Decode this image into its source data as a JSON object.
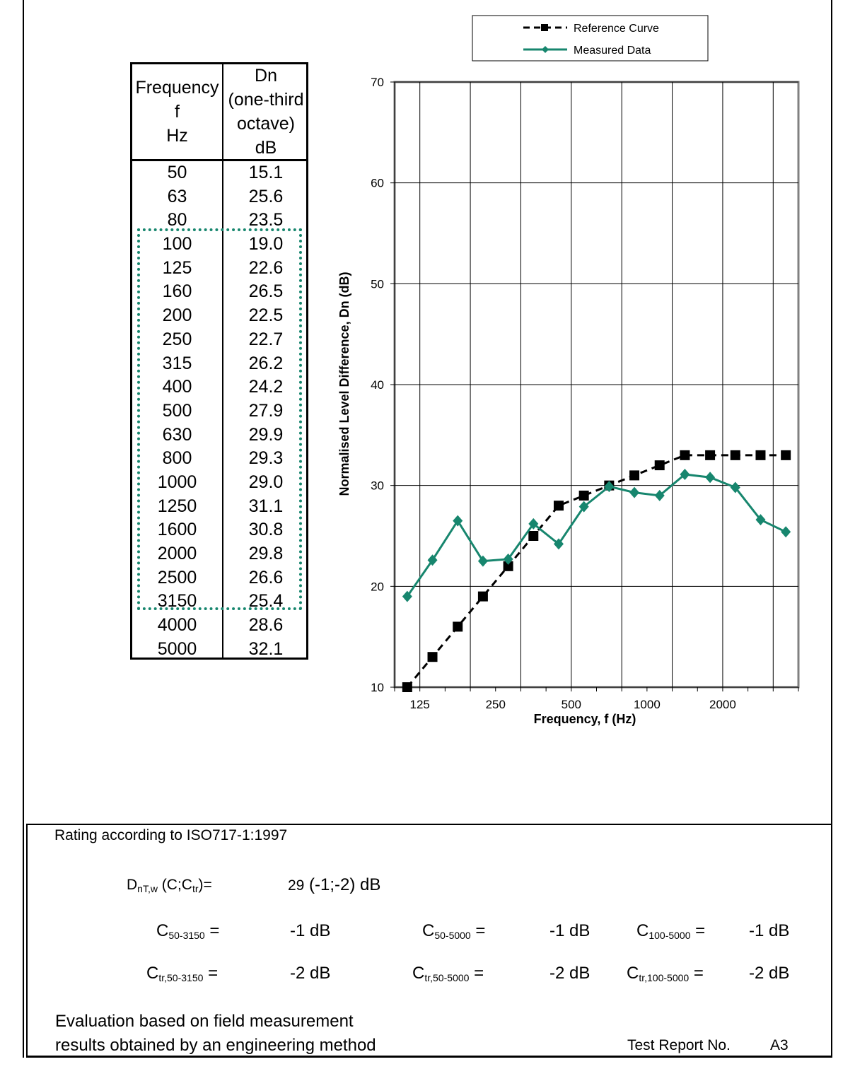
{
  "table": {
    "header_freq": [
      "Frequency",
      "f",
      "Hz"
    ],
    "header_dn": [
      "Dn",
      "(one-third",
      "octave)",
      "dB"
    ],
    "rows": [
      [
        "50",
        "15.1"
      ],
      [
        "63",
        "25.6"
      ],
      [
        "80",
        "23.5"
      ],
      [
        "100",
        "19.0"
      ],
      [
        "125",
        "22.6"
      ],
      [
        "160",
        "26.5"
      ],
      [
        "200",
        "22.5"
      ],
      [
        "250",
        "22.7"
      ],
      [
        "315",
        "26.2"
      ],
      [
        "400",
        "24.2"
      ],
      [
        "500",
        "27.9"
      ],
      [
        "630",
        "29.9"
      ],
      [
        "800",
        "29.3"
      ],
      [
        "1000",
        "29.0"
      ],
      [
        "1250",
        "31.1"
      ],
      [
        "1600",
        "30.8"
      ],
      [
        "2000",
        "29.8"
      ],
      [
        "2500",
        "26.6"
      ],
      [
        "3150",
        "25.4"
      ],
      [
        "4000",
        "28.6"
      ],
      [
        "5000",
        "32.1"
      ]
    ]
  },
  "chart_data": {
    "type": "line",
    "x": [
      100,
      125,
      160,
      200,
      250,
      315,
      400,
      500,
      630,
      800,
      1000,
      1250,
      1600,
      2000,
      2500,
      3150
    ],
    "series": [
      {
        "name": "Reference Curve",
        "color": "#000000",
        "style": "dashed",
        "marker": "square",
        "values": [
          10,
          13,
          16,
          19,
          22,
          25,
          28,
          29,
          30,
          31,
          32,
          33,
          33,
          33,
          33,
          33
        ]
      },
      {
        "name": "Measured Data",
        "color": "#17866e",
        "style": "solid",
        "marker": "diamond",
        "values": [
          19.0,
          22.6,
          26.5,
          22.5,
          22.7,
          26.2,
          24.2,
          27.9,
          29.9,
          29.3,
          29.0,
          31.1,
          30.8,
          29.8,
          26.6,
          25.4
        ]
      }
    ],
    "x_tick_labels": [
      "125",
      "250",
      "500",
      "1000",
      "2000"
    ],
    "y_ticks": [
      10,
      20,
      30,
      40,
      50,
      60,
      70
    ],
    "ylim": [
      10,
      70
    ],
    "xlabel": "Frequency, f (Hz)",
    "ylabel": "Normalised Level Difference, Dn (dB)",
    "grid": true,
    "legend_position": "top"
  },
  "rating": {
    "title": "Rating according to ISO717-1:1997",
    "dntw_label": "D",
    "dntw_sub": "nT,w",
    "dntw_paren_open": " (C;C",
    "dntw_paren_sub": "tr",
    "dntw_paren_close": ")=",
    "dntw_value_num": "29",
    "dntw_value_rest": " (-1;-2) dB",
    "c": [
      {
        "label": "C",
        "sub": "50-3150",
        "eq": " =",
        "value": "-1 dB"
      },
      {
        "label": "C",
        "sub": "50-5000",
        "eq": " =",
        "value": "-1 dB"
      },
      {
        "label": "C",
        "sub": "100-5000",
        "eq": " =",
        "value": "-1 dB"
      }
    ],
    "ctr": [
      {
        "label": "C",
        "sub": "tr,50-3150",
        "eq": " =",
        "value": "-2 dB"
      },
      {
        "label": "C",
        "sub": "tr,50-5000",
        "eq": " =",
        "value": "-2 dB"
      },
      {
        "label": "C",
        "sub": "tr,100-5000",
        "eq": " =",
        "value": "-2 dB"
      }
    ],
    "evaluation_line1": "Evaluation based on field measurement",
    "evaluation_line2": "results obtained by an engineering method",
    "report_label": "Test Report No.",
    "report_number": "A3"
  }
}
